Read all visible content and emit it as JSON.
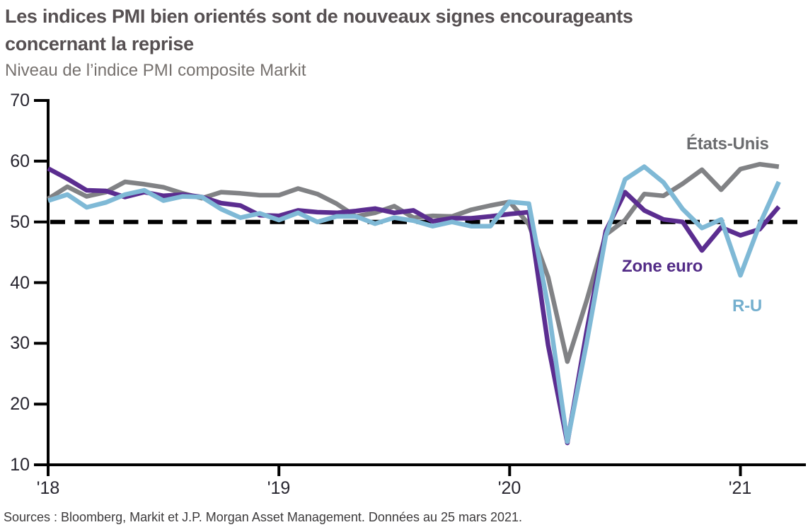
{
  "header": {
    "title_line1": "Les indices PMI bien orientés sont de nouveaux signes encourageants",
    "title_line2": "concernant la reprise",
    "subtitle": "Niveau de l’indice PMI composite Markit"
  },
  "footer": {
    "source": "Sources : Bloomberg, Markit et J.P. Morgan Asset Management. Données au 25 mars 2021."
  },
  "colors": {
    "axis": "#000000",
    "tick_text": "#27252f",
    "title_text": "#565052",
    "subtitle_text": "#76716e"
  },
  "chart_data": {
    "type": "line",
    "title": "Les indices PMI bien orientés sont de nouveaux signes encourageants concernant la reprise",
    "subtitle": "Niveau de l’indice PMI composite Markit",
    "x_start": "2018-01",
    "x_frequency": "monthly",
    "x_tick_labels": [
      "'18",
      "'19",
      "'20",
      "'21"
    ],
    "x_tick_month_index": [
      0,
      12,
      24,
      36
    ],
    "y_ticks": [
      70,
      60,
      50,
      40,
      30,
      20,
      10
    ],
    "ylim": [
      10,
      70
    ],
    "grid": false,
    "legend_position": "inline-annotations",
    "reference_line": {
      "value": 50,
      "style": "dashed",
      "color": "#000000"
    },
    "series": [
      {
        "name": "États-Unis",
        "color": "#818285",
        "label_color": "#6b6c6f",
        "values": [
          53.8,
          55.8,
          54.2,
          54.9,
          56.6,
          56.2,
          55.7,
          54.7,
          53.9,
          54.9,
          54.7,
          54.4,
          54.4,
          55.5,
          54.6,
          53.0,
          50.9,
          51.5,
          52.6,
          50.7,
          51.0,
          50.9,
          52.0,
          52.7,
          53.3,
          49.6,
          40.9,
          27.0,
          37.0,
          47.9,
          50.3,
          54.6,
          54.3,
          56.3,
          58.6,
          55.3,
          58.7,
          59.5,
          59.1
        ]
      },
      {
        "name": "Zone euro",
        "color": "#5b2d90",
        "label_color": "#532c87",
        "values": [
          58.8,
          57.1,
          55.2,
          55.1,
          54.1,
          54.9,
          54.3,
          54.5,
          54.1,
          53.1,
          52.7,
          51.1,
          51.0,
          51.9,
          51.6,
          51.5,
          51.8,
          52.2,
          51.5,
          51.9,
          50.1,
          50.6,
          50.6,
          50.9,
          51.3,
          51.6,
          29.7,
          13.6,
          31.9,
          48.5,
          54.9,
          51.9,
          50.4,
          50.0,
          45.3,
          49.1,
          47.8,
          48.8,
          52.5
        ]
      },
      {
        "name": "R-U",
        "color": "#7fb9d6",
        "label_color": "#74afce",
        "values": [
          53.5,
          54.5,
          52.4,
          53.2,
          54.5,
          55.2,
          53.5,
          54.2,
          54.1,
          52.1,
          50.7,
          51.4,
          50.3,
          51.5,
          50.0,
          50.9,
          50.9,
          49.7,
          50.7,
          50.2,
          49.3,
          50.0,
          49.3,
          49.3,
          53.3,
          53.0,
          36.0,
          13.8,
          30.0,
          47.7,
          57.0,
          59.1,
          56.5,
          52.1,
          49.0,
          50.4,
          41.2,
          49.6,
          56.6
        ]
      }
    ]
  }
}
